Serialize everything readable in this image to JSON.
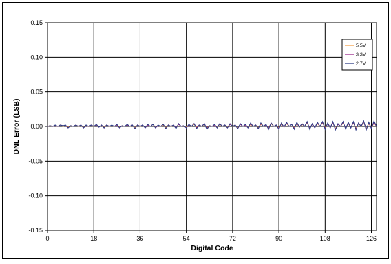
{
  "chart_data": {
    "type": "line",
    "title": "",
    "xlabel": "Digital Code",
    "ylabel": "DNL Error (LSB)",
    "xlim": [
      0,
      128
    ],
    "ylim": [
      -0.15,
      0.15
    ],
    "x_ticks": [
      0,
      18,
      36,
      54,
      72,
      90,
      108,
      126
    ],
    "y_ticks": [
      0.15,
      0.1,
      0.05,
      0.0,
      -0.05,
      -0.1,
      -0.15
    ],
    "y_tick_labels": [
      "0.15",
      "0.10",
      "0.05",
      "0.00",
      "-0.05",
      "-0.10",
      "-0.15"
    ],
    "grid": true,
    "legend_position": "top-right",
    "series": [
      {
        "name": "5.5V",
        "color": "#f5a04a",
        "values": [
          0.0,
          0.001,
          0.0,
          0.001,
          0.0,
          0.002,
          0.0,
          0.001,
          -0.001,
          0.001,
          0.0,
          0.002,
          0.0,
          0.001,
          -0.001,
          0.001,
          0.0,
          0.001,
          0.0,
          0.002,
          0.0,
          0.001,
          -0.001,
          0.002,
          0.0,
          0.001,
          0.0,
          0.002,
          -0.001,
          0.001,
          0.0,
          0.002,
          0.0,
          0.001,
          -0.002,
          0.002,
          0.0,
          0.001,
          -0.001,
          0.002,
          0.0,
          0.003,
          -0.001,
          0.001,
          0.0,
          0.002,
          -0.002,
          0.002,
          0.0,
          0.001,
          -0.001,
          0.003,
          0.0,
          0.001,
          -0.001,
          0.002,
          0.0,
          0.003,
          -0.001,
          0.002,
          0.0,
          0.003,
          -0.002,
          0.001,
          0.0,
          0.002,
          -0.001,
          0.003,
          0.0,
          0.002,
          -0.001,
          0.003,
          0.0,
          0.002,
          -0.002,
          0.003,
          0.0,
          0.002,
          -0.001,
          0.003,
          0.0,
          0.002,
          -0.002,
          0.003,
          0.0,
          0.002,
          -0.002,
          0.004,
          0.0,
          0.002,
          -0.002,
          0.003,
          -0.001,
          0.004,
          0.0,
          0.003,
          -0.002,
          0.004,
          -0.001,
          0.003,
          0.0,
          0.005,
          -0.002,
          0.003,
          -0.001,
          0.004,
          0.0,
          0.005,
          -0.002,
          0.004,
          -0.001,
          0.005,
          -0.003,
          0.003,
          0.0,
          0.005,
          -0.002,
          0.004,
          -0.001,
          0.005,
          -0.003,
          0.004,
          0.0,
          0.006,
          -0.003,
          0.004,
          -0.002,
          0.005,
          0.0
        ]
      },
      {
        "name": "3.3V",
        "color": "#9a2a8c",
        "values": [
          0.0,
          0.001,
          0.0,
          0.001,
          0.0,
          0.002,
          0.001,
          0.001,
          -0.002,
          0.001,
          0.0,
          0.002,
          0.0,
          0.002,
          -0.002,
          0.001,
          0.0,
          0.002,
          0.0,
          0.002,
          -0.001,
          0.002,
          -0.002,
          0.002,
          0.0,
          0.001,
          0.0,
          0.002,
          -0.002,
          0.001,
          0.0,
          0.002,
          0.0,
          0.002,
          -0.003,
          0.002,
          0.0,
          0.002,
          -0.002,
          0.002,
          0.0,
          0.003,
          -0.002,
          0.001,
          0.0,
          0.003,
          -0.003,
          0.002,
          0.0,
          0.002,
          -0.002,
          0.003,
          0.0,
          0.001,
          -0.002,
          0.002,
          0.0,
          0.004,
          -0.002,
          0.002,
          0.0,
          0.004,
          -0.003,
          0.001,
          0.0,
          0.002,
          -0.002,
          0.004,
          0.0,
          0.002,
          -0.002,
          0.003,
          0.0,
          0.002,
          -0.003,
          0.003,
          0.0,
          0.002,
          -0.002,
          0.004,
          0.0,
          0.002,
          -0.003,
          0.004,
          0.0,
          0.002,
          -0.003,
          0.005,
          0.0,
          0.002,
          -0.003,
          0.004,
          -0.001,
          0.005,
          0.0,
          0.003,
          -0.003,
          0.005,
          -0.001,
          0.004,
          0.0,
          0.006,
          -0.003,
          0.003,
          -0.002,
          0.005,
          0.0,
          0.006,
          -0.003,
          0.004,
          -0.002,
          0.006,
          -0.004,
          0.003,
          0.0,
          0.006,
          -0.003,
          0.005,
          -0.002,
          0.006,
          -0.004,
          0.005,
          0.0,
          0.007,
          -0.004,
          0.005,
          -0.003,
          0.006,
          0.0
        ]
      },
      {
        "name": "2.7V",
        "color": "#2f3f86",
        "values": [
          0.0,
          0.001,
          0.0,
          0.002,
          0.0,
          0.002,
          0.001,
          0.002,
          -0.002,
          0.001,
          0.0,
          0.002,
          0.0,
          0.002,
          -0.002,
          0.002,
          0.0,
          0.002,
          0.0,
          0.003,
          -0.001,
          0.002,
          -0.002,
          0.002,
          0.0,
          0.002,
          0.0,
          0.003,
          -0.002,
          0.001,
          0.0,
          0.003,
          0.0,
          0.002,
          -0.003,
          0.002,
          0.0,
          0.002,
          -0.002,
          0.003,
          0.0,
          0.003,
          -0.002,
          0.002,
          0.0,
          0.003,
          -0.003,
          0.002,
          0.0,
          0.002,
          -0.003,
          0.004,
          0.0,
          0.001,
          -0.002,
          0.003,
          0.0,
          0.004,
          -0.003,
          0.002,
          0.0,
          0.004,
          -0.004,
          0.001,
          0.0,
          0.003,
          -0.002,
          0.004,
          0.0,
          0.002,
          -0.002,
          0.004,
          0.0,
          0.002,
          -0.003,
          0.004,
          0.0,
          0.003,
          -0.002,
          0.005,
          0.0,
          0.002,
          -0.003,
          0.005,
          0.0,
          0.003,
          -0.004,
          0.005,
          0.0,
          0.002,
          -0.004,
          0.005,
          -0.001,
          0.006,
          0.0,
          0.003,
          -0.004,
          0.006,
          -0.001,
          0.004,
          0.0,
          0.007,
          -0.004,
          0.004,
          -0.002,
          0.006,
          0.0,
          0.007,
          -0.004,
          0.005,
          -0.002,
          0.007,
          -0.005,
          0.004,
          0.0,
          0.007,
          -0.004,
          0.006,
          -0.002,
          0.007,
          -0.005,
          0.005,
          0.0,
          0.008,
          -0.005,
          0.006,
          -0.003,
          0.008,
          0.0
        ]
      }
    ]
  }
}
